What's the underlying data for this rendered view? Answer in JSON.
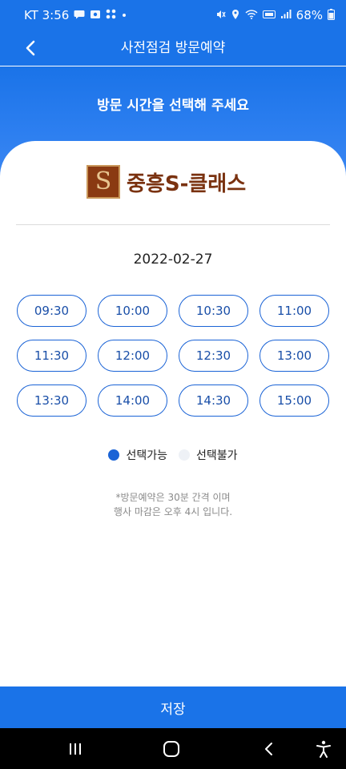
{
  "status": {
    "carrier_time": "KT 3:56",
    "battery": "68%",
    "left_icons": [
      "chat-bubble-icon",
      "gallery-icon",
      "apps-icon",
      "dot-icon"
    ],
    "right_icons": [
      "mute-icon",
      "location-icon",
      "wifi-icon",
      "volte-icon",
      "signal-icon",
      "battery-icon"
    ]
  },
  "header": {
    "title": "사전점검 방문예약",
    "back_icon": "chevron-left-icon"
  },
  "hero": {
    "title": "방문 시간을 선택해 주세요"
  },
  "logo": {
    "mark_letter": "S",
    "mark_caption": "S-CLASS",
    "text": "중흥S-클래스",
    "colors": {
      "mark_bg": "#8a3a12",
      "mark_fg": "#e8c590",
      "text": "#7a3210"
    }
  },
  "date": "2022-02-27",
  "slots": [
    "09:30",
    "10:00",
    "10:30",
    "11:00",
    "11:30",
    "12:00",
    "12:30",
    "13:00",
    "13:30",
    "14:00",
    "14:30",
    "15:00"
  ],
  "legend": {
    "available_label": "선택가능",
    "unavailable_label": "선택불가",
    "available_color": "#1a63d6",
    "unavailable_color": "#eef1f6"
  },
  "note": {
    "line1": "*방문예약은 30분 간격 이며",
    "line2": "행사 마감은 오후 4시 입니다."
  },
  "save_label": "저장",
  "nav": {
    "recent_icon": "recent-apps-icon",
    "home_icon": "home-icon",
    "back_icon": "back-icon",
    "accessibility_icon": "accessibility-icon"
  },
  "colors": {
    "primary": "#1a73e8",
    "slot_border": "#1a63d6"
  }
}
